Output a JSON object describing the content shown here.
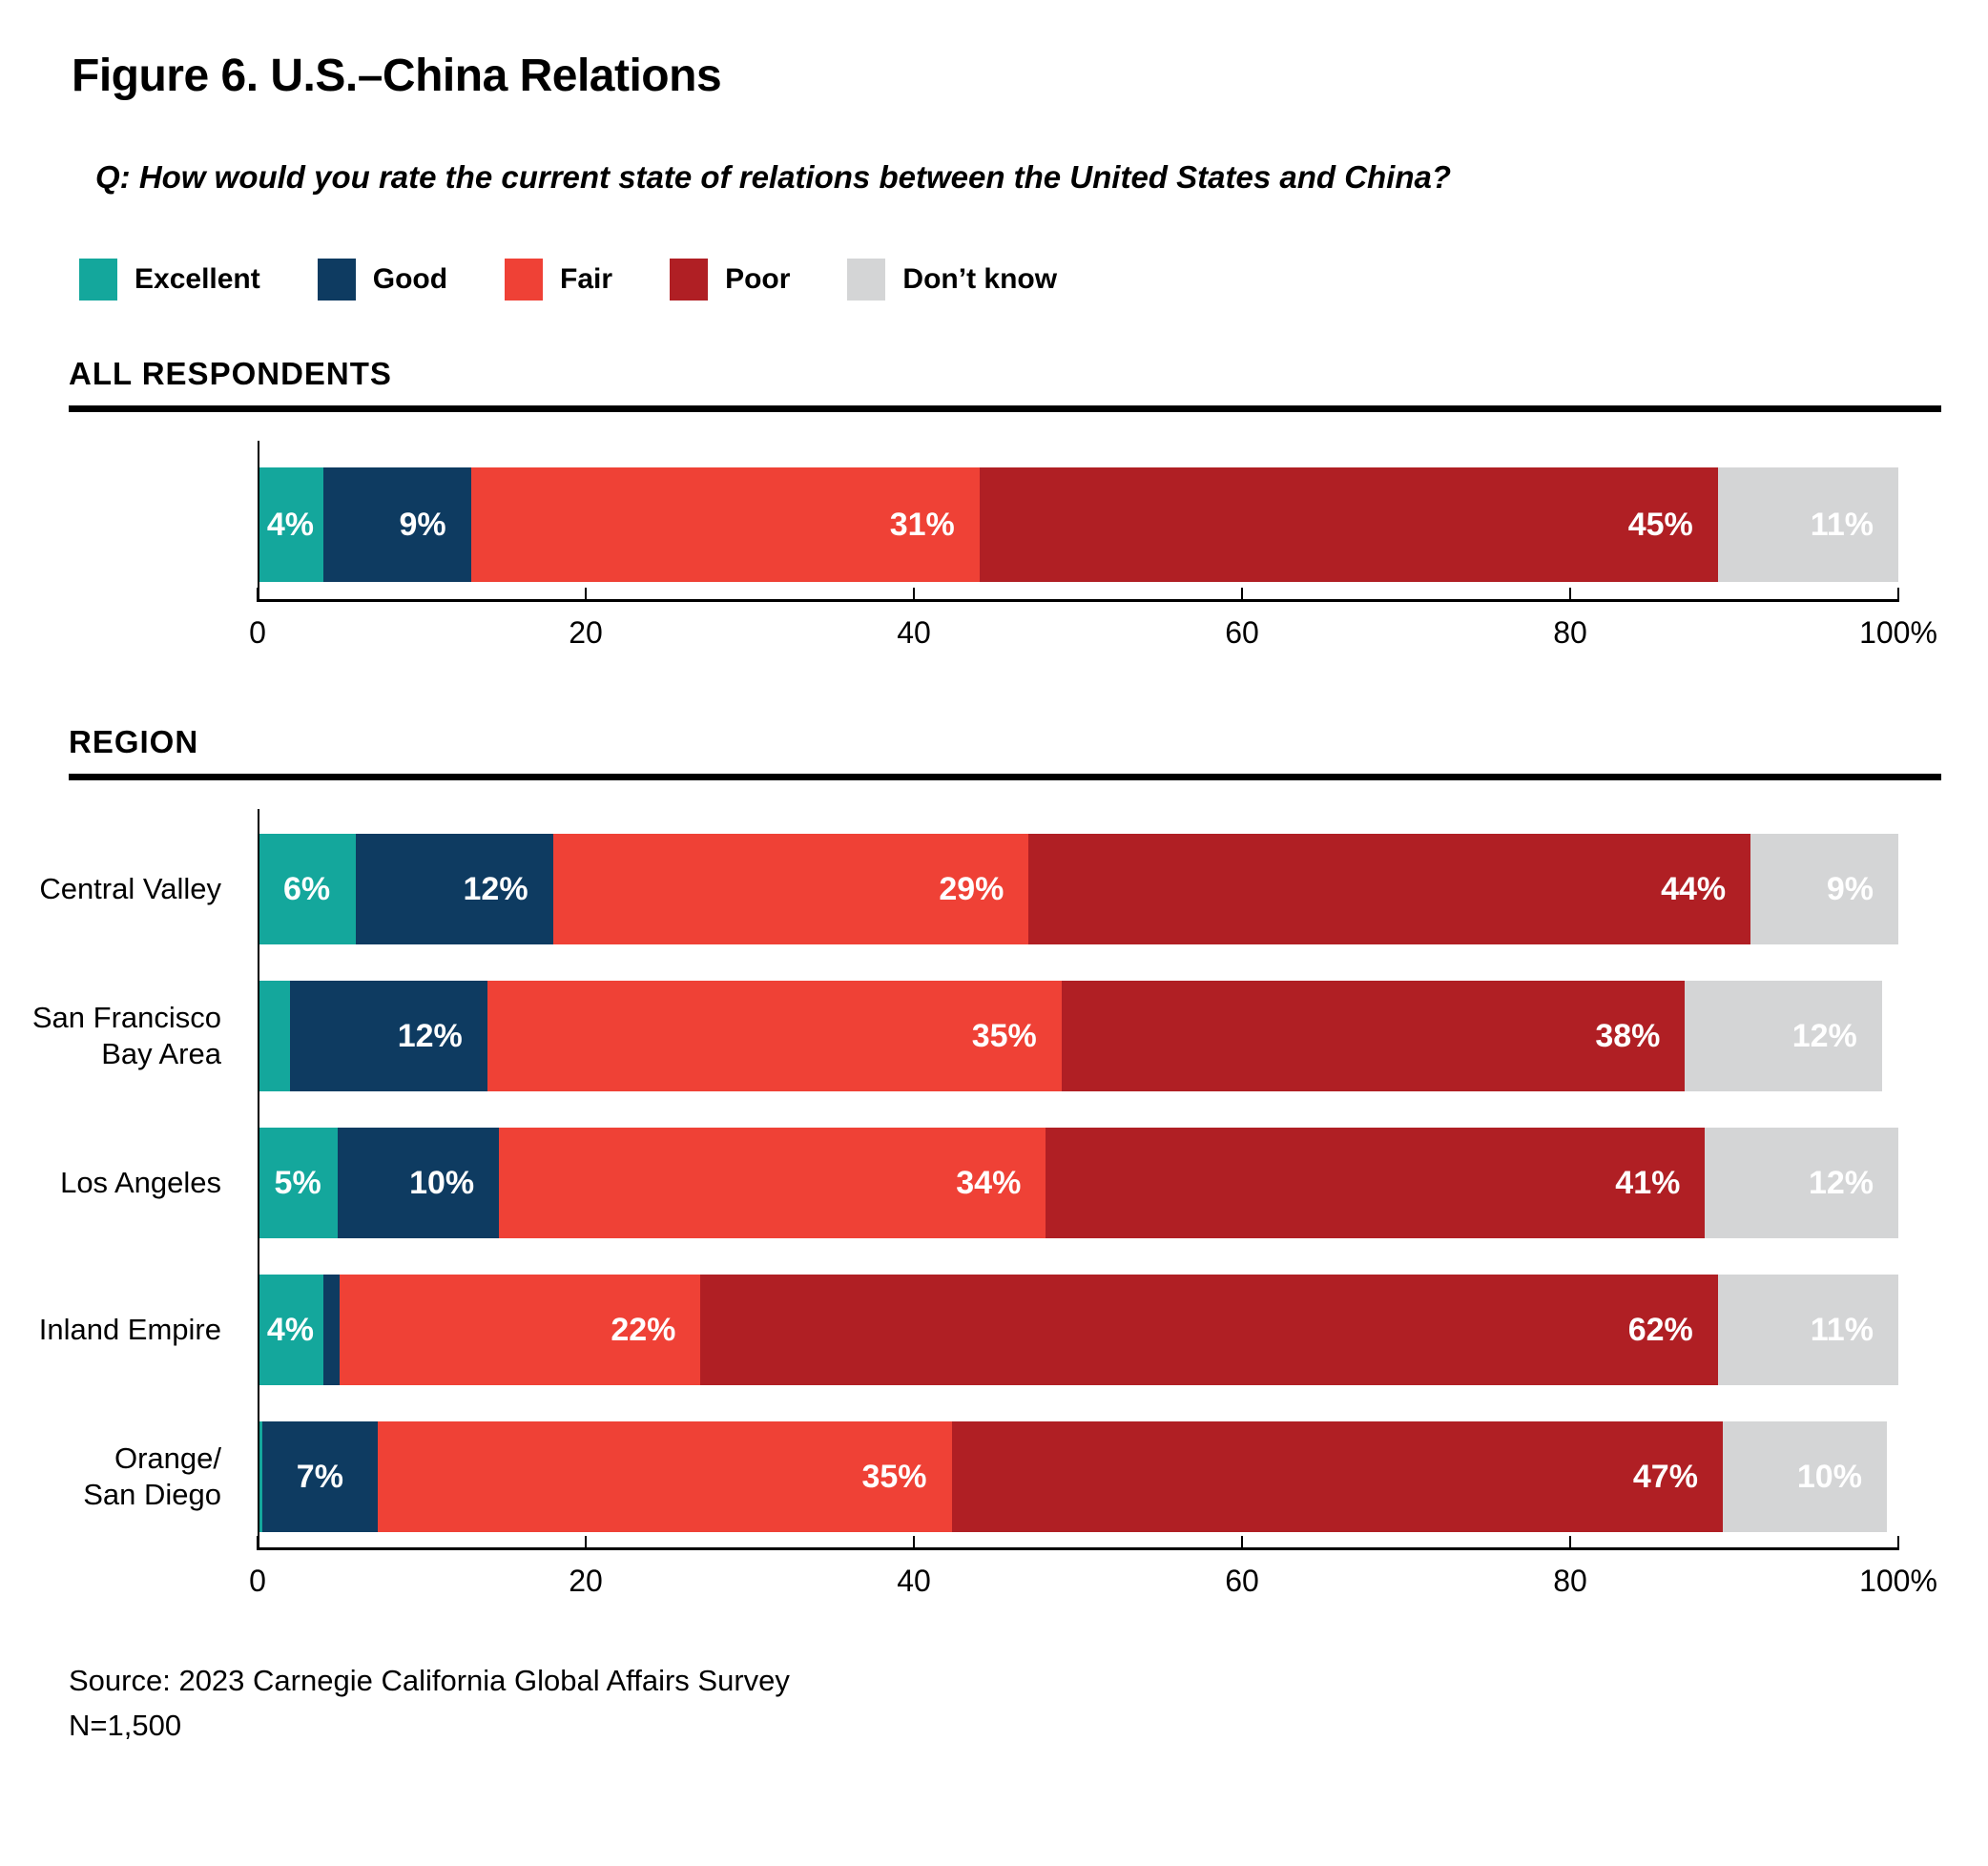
{
  "figure": {
    "title": "Figure 6. U.S.–China Relations",
    "question": "Q: How would you rate the current state of relations between the United States and China?"
  },
  "colors": {
    "excellent": "#14A79C",
    "good": "#0E3B61",
    "fair": "#EF4136",
    "poor": "#B01F24",
    "dont_know": "#D4D5D6"
  },
  "legend": {
    "items": [
      {
        "key": "excellent",
        "label": "Excellent",
        "color": "#14A79C"
      },
      {
        "key": "good",
        "label": "Good",
        "color": "#0E3B61"
      },
      {
        "key": "fair",
        "label": "Fair",
        "color": "#EF4136"
      },
      {
        "key": "poor",
        "label": "Poor",
        "color": "#B01F24"
      },
      {
        "key": "dont-know",
        "label": "Don’t know",
        "color": "#D4D5D6"
      }
    ]
  },
  "chart_data": [
    {
      "type": "bar",
      "stacked": true,
      "orientation": "horizontal",
      "title": "ALL RESPONDENTS",
      "categories": [
        ""
      ],
      "series": [
        {
          "key": "excellent",
          "name": "Excellent",
          "color": "#14A79C",
          "values": [
            4
          ],
          "labels": [
            "4%"
          ]
        },
        {
          "key": "good",
          "name": "Good",
          "color": "#0E3B61",
          "values": [
            9
          ],
          "labels": [
            "9%"
          ]
        },
        {
          "key": "fair",
          "name": "Fair",
          "color": "#EF4136",
          "values": [
            31
          ],
          "labels": [
            "31%"
          ]
        },
        {
          "key": "poor",
          "name": "Poor",
          "color": "#B01F24",
          "values": [
            45
          ],
          "labels": [
            "45%"
          ]
        },
        {
          "key": "dont-know",
          "name": "Don’t know",
          "color": "#D4D5D6",
          "values": [
            11
          ],
          "labels": [
            "11%"
          ]
        }
      ],
      "xlim": [
        0,
        100
      ],
      "xticks": [
        "0",
        "20",
        "40",
        "60",
        "80",
        "100%"
      ],
      "grid": false,
      "legend_position": "top"
    },
    {
      "type": "bar",
      "stacked": true,
      "orientation": "horizontal",
      "title": "REGION",
      "categories": [
        "Central Valley",
        "San Francisco\nBay Area",
        "Los Angeles",
        "Inland Empire",
        "Orange/\nSan Diego"
      ],
      "series": [
        {
          "key": "excellent",
          "name": "Excellent",
          "color": "#14A79C",
          "values": [
            6,
            2,
            5,
            4,
            0.3
          ],
          "labels": [
            "6%",
            "",
            "5%",
            "4%",
            ""
          ]
        },
        {
          "key": "good",
          "name": "Good",
          "color": "#0E3B61",
          "values": [
            12,
            12,
            10,
            1,
            7
          ],
          "labels": [
            "12%",
            "12%",
            "10%",
            "",
            "7%"
          ]
        },
        {
          "key": "fair",
          "name": "Fair",
          "color": "#EF4136",
          "values": [
            29,
            35,
            34,
            22,
            35
          ],
          "labels": [
            "29%",
            "35%",
            "34%",
            "22%",
            "35%"
          ]
        },
        {
          "key": "poor",
          "name": "Poor",
          "color": "#B01F24",
          "values": [
            44,
            38,
            41,
            62,
            47
          ],
          "labels": [
            "44%",
            "38%",
            "41%",
            "62%",
            "47%"
          ]
        },
        {
          "key": "dont-know",
          "name": "Don’t know",
          "color": "#D4D5D6",
          "values": [
            9,
            12,
            12,
            11,
            10
          ],
          "labels": [
            "9%",
            "12%",
            "12%",
            "11%",
            "10%"
          ]
        }
      ],
      "xlim": [
        0,
        100
      ],
      "xticks": [
        "0",
        "20",
        "40",
        "60",
        "80",
        "100%"
      ],
      "grid": false
    }
  ],
  "source": {
    "line1": "Source: 2023 Carnegie California Global Affairs Survey",
    "line2": "N=1,500"
  }
}
